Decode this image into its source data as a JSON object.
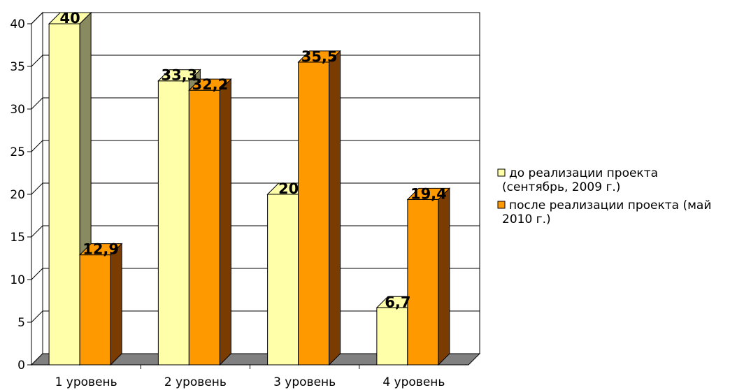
{
  "chart_data": {
    "type": "bar",
    "title": "",
    "xlabel": "",
    "ylabel": "",
    "ylim": [
      0,
      40
    ],
    "yticks": [
      0,
      5,
      10,
      15,
      20,
      25,
      30,
      35,
      40
    ],
    "grid": true,
    "three_d": true,
    "legend_position": "right",
    "categories": [
      "1 уровень",
      "2 уровень",
      "3 уровень",
      "4 уровень"
    ],
    "series": [
      {
        "name": [
          "до реализации проекта",
          "(сентябрь, 2009 г.)"
        ],
        "color": "#FFFFAA",
        "side_color": "#8A8A60",
        "values": [
          40,
          33.3,
          20,
          6.7
        ],
        "labels": [
          "40",
          "33,3",
          "20",
          "6,7"
        ]
      },
      {
        "name": [
          "после реализации проекта (май",
          "2010 г.)"
        ],
        "color": "#FF9900",
        "side_color": "#7A3C00",
        "values": [
          12.9,
          32.2,
          35.5,
          19.4
        ],
        "labels": [
          "12,9",
          "32,2",
          "35,5",
          "19,4"
        ]
      }
    ]
  }
}
